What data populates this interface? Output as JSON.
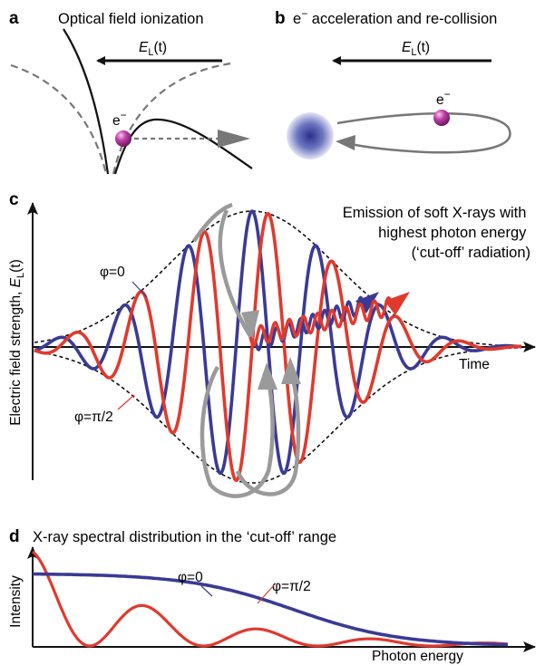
{
  "panel_a": {
    "letter": "a",
    "title": "Optical field ionization",
    "field_symbol": "E",
    "field_subscript": "L",
    "field_arg": "(t)",
    "electron_label": "e",
    "electron_charge": "−"
  },
  "panel_b": {
    "letter": "b",
    "title_prefix": "e",
    "title_charge": "−",
    "title_rest": " acceleration and re-collision",
    "field_symbol": "E",
    "field_subscript": "L",
    "field_arg": "(t)",
    "electron_label": "e",
    "electron_charge": "−"
  },
  "panel_c": {
    "letter": "c",
    "annotation_lines": [
      "Emission of soft X-rays with",
      "highest photon energy",
      "(‘cut-off’ radiation)"
    ],
    "ylabel_prefix": "Electric field strength, ",
    "ylabel_symbol": "E",
    "ylabel_subscript": "L",
    "ylabel_arg": "(t)",
    "xlabel": "Time",
    "phase_label_1": "φ=0",
    "phase_label_2": "φ=π/2",
    "colors": {
      "phase_0": "#3a3a96",
      "phase_pi2": "#e03a2e",
      "envelope": "#111111",
      "trajectory": "#9a9a9a"
    }
  },
  "panel_d": {
    "letter": "d",
    "title": "X-ray spectral distribution in the ‘cut-off’ range",
    "ylabel": "Intensity",
    "xlabel": "Photon energy",
    "phase_label_1": "φ=0",
    "phase_label_2": "φ=π/2",
    "colors": {
      "phase_0": "#3a3a96",
      "phase_pi2": "#e03a2e"
    }
  }
}
